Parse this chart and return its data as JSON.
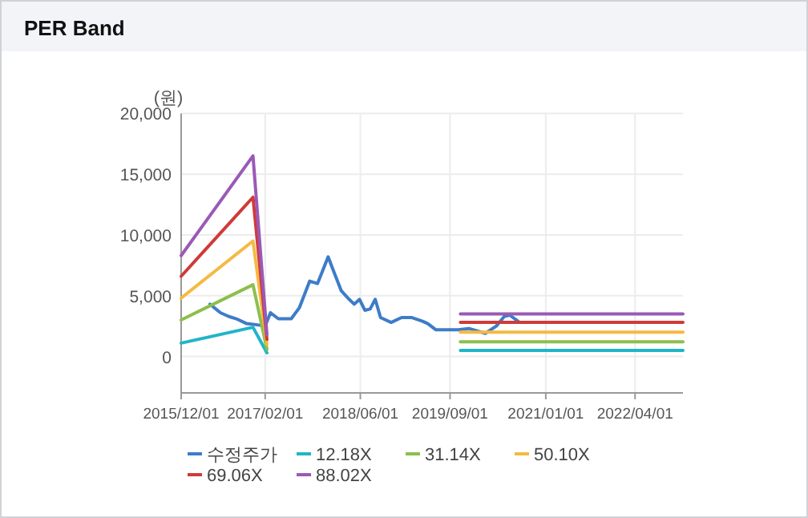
{
  "chart_data": {
    "type": "line",
    "title": "PER Band",
    "ylabel": "(원)",
    "xlim": [
      "2015-12-01",
      "2022-12-01"
    ],
    "xticks": [
      {
        "value": "2015-12-01",
        "label": "2015/12/01"
      },
      {
        "value": "2017-02-01",
        "label": "2017/02/01"
      },
      {
        "value": "2018-06-01",
        "label": "2018/06/01"
      },
      {
        "value": "2019-09-01",
        "label": "2019/09/01"
      },
      {
        "value": "2021-01-01",
        "label": "2021/01/01"
      },
      {
        "value": "2022-04-01",
        "label": "2022/04/01"
      }
    ],
    "ylim": [
      -3000,
      20000
    ],
    "yticks": [
      {
        "value": 0,
        "label": "0"
      },
      {
        "value": 5000,
        "label": "5,000"
      },
      {
        "value": 10000,
        "label": "10,000"
      },
      {
        "value": 15000,
        "label": "15,000"
      },
      {
        "value": 20000,
        "label": "20,000"
      }
    ],
    "grid": true,
    "legend": "bottom",
    "marker": "none",
    "line_style": "solid",
    "series": [
      {
        "name": "수정주가",
        "color": "#3d7cc9",
        "x": [
          "2016-04-26",
          "2016-06-18",
          "2016-07-29",
          "2016-09-07",
          "2016-10-30",
          "2016-12-23",
          "2017-02-01",
          "2017-02-28",
          "2017-04-09",
          "2017-06-14",
          "2017-07-25",
          "2017-09-16",
          "2017-10-26",
          "2017-11-22",
          "2017-12-19",
          "2018-01-14",
          "2018-02-24",
          "2018-04-05",
          "2018-05-01",
          "2018-05-28",
          "2018-06-24",
          "2018-07-21",
          "2018-08-16",
          "2018-09-12",
          "2018-11-05",
          "2018-12-28",
          "2019-02-19",
          "2019-04-14",
          "2019-05-11",
          "2019-06-20",
          "2019-07-30",
          "2019-10-13",
          "2019-12-06",
          "2020-02-28",
          "2020-04-24",
          "2020-06-04",
          "2020-07-01",
          "2020-08-13"
        ],
        "values": [
          4300,
          3600,
          3300,
          3100,
          2700,
          2600,
          2500,
          3600,
          3100,
          3100,
          4000,
          6200,
          6000,
          7100,
          8200,
          7100,
          5400,
          4700,
          4300,
          4700,
          3800,
          3900,
          4700,
          3200,
          2800,
          3200,
          3200,
          2900,
          2700,
          2200,
          2200,
          2200,
          2300,
          1900,
          2500,
          3300,
          3400,
          2900
        ]
      },
      {
        "name": "12.18X",
        "color": "#20b5c8",
        "x": [
          "2015-12-01",
          "2016-12-01",
          "2017-02-10"
        ],
        "values": [
          1100,
          2400,
          300
        ]
      },
      {
        "name": "31.14X",
        "color": "#8cbf4d",
        "x": [
          "2015-12-01",
          "2016-12-01",
          "2017-02-10"
        ],
        "values": [
          3000,
          5900,
          600
        ]
      },
      {
        "name": "50.10X",
        "color": "#f5b942",
        "x": [
          "2015-12-01",
          "2016-12-01",
          "2017-02-10"
        ],
        "values": [
          4800,
          9500,
          1000
        ]
      },
      {
        "name": "69.06X",
        "color": "#d03a3a",
        "x": [
          "2015-12-01",
          "2016-12-01",
          "2017-02-10"
        ],
        "values": [
          6600,
          13100,
          1400
        ]
      },
      {
        "name": "88.02X",
        "color": "#9b59b6",
        "x": [
          "2015-12-01",
          "2016-12-01",
          "2017-02-10"
        ],
        "values": [
          8300,
          16500,
          1800
        ]
      },
      {
        "color": "#20b5c8",
        "x": [
          "2019-10-24",
          "2022-12-01"
        ],
        "values": [
          500,
          500
        ]
      },
      {
        "color": "#8cbf4d",
        "x": [
          "2019-10-24",
          "2022-12-01"
        ],
        "values": [
          1200,
          1200
        ]
      },
      {
        "color": "#f5b942",
        "x": [
          "2019-10-24",
          "2022-12-01"
        ],
        "values": [
          2000,
          2000
        ]
      },
      {
        "color": "#d03a3a",
        "x": [
          "2019-10-24",
          "2022-12-01"
        ],
        "values": [
          2800,
          2800
        ]
      },
      {
        "color": "#9b59b6",
        "x": [
          "2019-10-24",
          "2022-12-01"
        ],
        "values": [
          3500,
          3500
        ]
      }
    ]
  }
}
